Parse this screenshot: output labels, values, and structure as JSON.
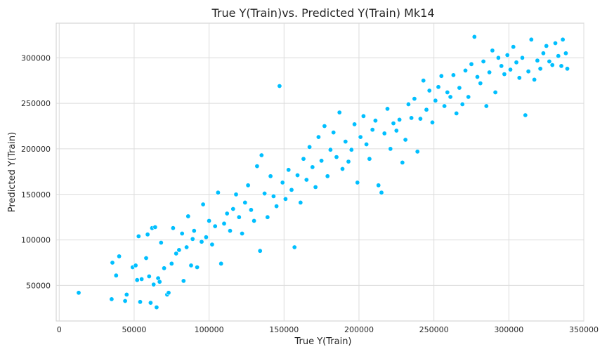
{
  "chart_data": {
    "type": "scatter",
    "title": "True Y(Train)vs. Predicted Y(Train) Mk14",
    "xlabel": "True Y(Train)",
    "ylabel": "Predicted Y(Train)",
    "xlim": [
      -2000,
      350000
    ],
    "ylim": [
      11000,
      338000
    ],
    "xticks": [
      0,
      50000,
      100000,
      150000,
      200000,
      250000,
      300000,
      350000
    ],
    "yticks": [
      50000,
      100000,
      150000,
      200000,
      250000,
      300000
    ],
    "xtick_labels": [
      "0",
      "50000",
      "100000",
      "150000",
      "200000",
      "250000",
      "300000",
      "350000"
    ],
    "ytick_labels": [
      "50000",
      "100000",
      "150000",
      "200000",
      "250000",
      "300000"
    ],
    "grid": true,
    "marker_color": "#00bfff",
    "series": [
      {
        "points": [
          [
            13000,
            42000
          ],
          [
            35000,
            35000
          ],
          [
            35500,
            75000
          ],
          [
            38000,
            61000
          ],
          [
            40000,
            82000
          ],
          [
            44000,
            33000
          ],
          [
            45000,
            40000
          ],
          [
            49000,
            70000
          ],
          [
            51000,
            72000
          ],
          [
            52000,
            56000
          ],
          [
            53000,
            104000
          ],
          [
            54000,
            32000
          ],
          [
            55000,
            57000
          ],
          [
            58000,
            80000
          ],
          [
            59000,
            106000
          ],
          [
            60000,
            60000
          ],
          [
            61000,
            31000
          ],
          [
            62000,
            113000
          ],
          [
            63000,
            51000
          ],
          [
            64000,
            114000
          ],
          [
            65000,
            26000
          ],
          [
            66000,
            58000
          ],
          [
            67000,
            54000
          ],
          [
            68000,
            97000
          ],
          [
            70000,
            69000
          ],
          [
            72000,
            40000
          ],
          [
            73000,
            42000
          ],
          [
            75000,
            74000
          ],
          [
            76000,
            113000
          ],
          [
            78000,
            85000
          ],
          [
            80000,
            89000
          ],
          [
            82000,
            107000
          ],
          [
            83000,
            55000
          ],
          [
            85000,
            92000
          ],
          [
            86000,
            126000
          ],
          [
            88000,
            72000
          ],
          [
            89000,
            101000
          ],
          [
            90000,
            110000
          ],
          [
            92000,
            70000
          ],
          [
            95000,
            98000
          ],
          [
            96000,
            139000
          ],
          [
            98000,
            103000
          ],
          [
            100000,
            121000
          ],
          [
            102000,
            95000
          ],
          [
            104000,
            115000
          ],
          [
            106000,
            152000
          ],
          [
            108000,
            74000
          ],
          [
            110000,
            118000
          ],
          [
            112000,
            129000
          ],
          [
            114000,
            110000
          ],
          [
            116000,
            134000
          ],
          [
            118000,
            150000
          ],
          [
            120000,
            125000
          ],
          [
            122000,
            107000
          ],
          [
            124000,
            141000
          ],
          [
            126000,
            160000
          ],
          [
            128000,
            133000
          ],
          [
            130000,
            121000
          ],
          [
            132000,
            181000
          ],
          [
            134000,
            88000
          ],
          [
            135000,
            193000
          ],
          [
            137000,
            151000
          ],
          [
            139000,
            125000
          ],
          [
            141000,
            170000
          ],
          [
            143000,
            148000
          ],
          [
            145000,
            137000
          ],
          [
            147000,
            269000
          ],
          [
            149000,
            163000
          ],
          [
            151000,
            145000
          ],
          [
            153000,
            177000
          ],
          [
            155000,
            155000
          ],
          [
            157000,
            92000
          ],
          [
            159000,
            171000
          ],
          [
            161000,
            141000
          ],
          [
            163000,
            189000
          ],
          [
            165000,
            166000
          ],
          [
            167000,
            202000
          ],
          [
            169000,
            180000
          ],
          [
            171000,
            158000
          ],
          [
            173000,
            213000
          ],
          [
            175000,
            187000
          ],
          [
            177000,
            225000
          ],
          [
            179000,
            170000
          ],
          [
            181000,
            199000
          ],
          [
            183000,
            218000
          ],
          [
            185000,
            191000
          ],
          [
            187000,
            240000
          ],
          [
            189000,
            178000
          ],
          [
            191000,
            208000
          ],
          [
            193000,
            186000
          ],
          [
            195000,
            199000
          ],
          [
            197000,
            227000
          ],
          [
            199000,
            163000
          ],
          [
            201000,
            213000
          ],
          [
            203000,
            236000
          ],
          [
            205000,
            205000
          ],
          [
            207000,
            189000
          ],
          [
            209000,
            221000
          ],
          [
            211000,
            231000
          ],
          [
            213000,
            160000
          ],
          [
            215000,
            152000
          ],
          [
            217000,
            217000
          ],
          [
            219000,
            244000
          ],
          [
            221000,
            200000
          ],
          [
            223000,
            228000
          ],
          [
            225000,
            220000
          ],
          [
            227000,
            232000
          ],
          [
            229000,
            185000
          ],
          [
            231000,
            210000
          ],
          [
            233000,
            249000
          ],
          [
            235000,
            234000
          ],
          [
            237000,
            255000
          ],
          [
            239000,
            197000
          ],
          [
            241000,
            233000
          ],
          [
            243000,
            275000
          ],
          [
            245000,
            243000
          ],
          [
            247000,
            264000
          ],
          [
            249000,
            229000
          ],
          [
            251000,
            253000
          ],
          [
            253000,
            268000
          ],
          [
            255000,
            280000
          ],
          [
            257000,
            247000
          ],
          [
            259000,
            262000
          ],
          [
            261000,
            257000
          ],
          [
            263000,
            281000
          ],
          [
            265000,
            239000
          ],
          [
            267000,
            267000
          ],
          [
            269000,
            249000
          ],
          [
            271000,
            286000
          ],
          [
            273000,
            257000
          ],
          [
            275000,
            293000
          ],
          [
            277000,
            323000
          ],
          [
            279000,
            279000
          ],
          [
            281000,
            272000
          ],
          [
            283000,
            296000
          ],
          [
            285000,
            247000
          ],
          [
            287000,
            284000
          ],
          [
            289000,
            308000
          ],
          [
            291000,
            262000
          ],
          [
            293000,
            300000
          ],
          [
            295000,
            291000
          ],
          [
            297000,
            282000
          ],
          [
            299000,
            303000
          ],
          [
            301000,
            287000
          ],
          [
            303000,
            312000
          ],
          [
            305000,
            295000
          ],
          [
            307000,
            278000
          ],
          [
            309000,
            300000
          ],
          [
            311000,
            237000
          ],
          [
            313000,
            285000
          ],
          [
            315000,
            320000
          ],
          [
            317000,
            276000
          ],
          [
            319000,
            297000
          ],
          [
            321000,
            288000
          ],
          [
            323000,
            305000
          ],
          [
            325000,
            313000
          ],
          [
            327000,
            296000
          ],
          [
            329000,
            292000
          ],
          [
            331000,
            316000
          ],
          [
            333000,
            302000
          ],
          [
            335000,
            291000
          ],
          [
            336000,
            320000
          ],
          [
            338000,
            305000
          ],
          [
            339000,
            288000
          ]
        ]
      }
    ]
  }
}
